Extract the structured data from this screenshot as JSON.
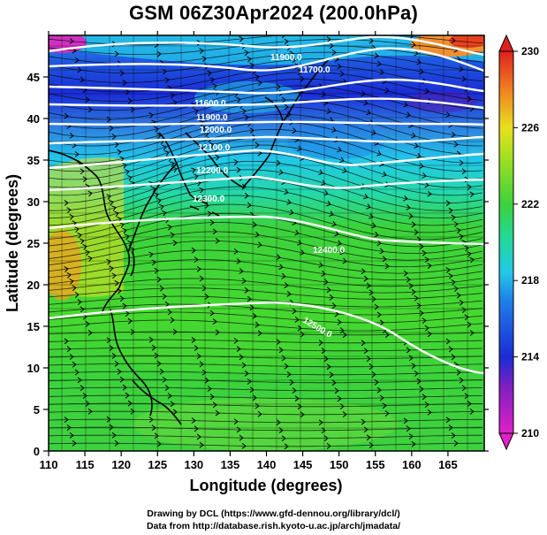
{
  "title": "GSM 06Z30Apr2024 (200.0hPa)",
  "axes": {
    "x_label": "Longitude (degrees)",
    "y_label": "Latitude  (degrees)",
    "x_ticks": [
      "110",
      "115",
      "120",
      "125",
      "130",
      "135",
      "140",
      "145",
      "150",
      "155",
      "160",
      "165"
    ],
    "y_ticks": [
      "0",
      "5",
      "10",
      "15",
      "20",
      "25",
      "30",
      "35",
      "40",
      "45"
    ],
    "x_range": [
      110,
      170
    ],
    "y_range": [
      0,
      50
    ]
  },
  "colorbar": {
    "ticks": [
      "210",
      "214",
      "218",
      "222",
      "226",
      "230"
    ],
    "range": [
      210,
      230
    ]
  },
  "contour_labels": [
    "11600.0",
    "11700.0",
    "11800.0",
    "11900.0",
    "12000.0",
    "12100.0",
    "12200.0",
    "12300.0",
    "12400.0",
    "12500.0"
  ],
  "credits": [
    "Drawing by DCL (https://www.gfd-dennou.org/library/dcl/)",
    "Data from http://database.rish.kyoto-u.ac.jp/arch/jmadata/"
  ],
  "colors": {
    "purple": "#a020a0",
    "blue": "#1a2cd6",
    "cyan": "#22c8e8",
    "green": "#3cd23c",
    "yellow": "#e8e020",
    "orange": "#f08020",
    "red": "#e02020"
  }
}
